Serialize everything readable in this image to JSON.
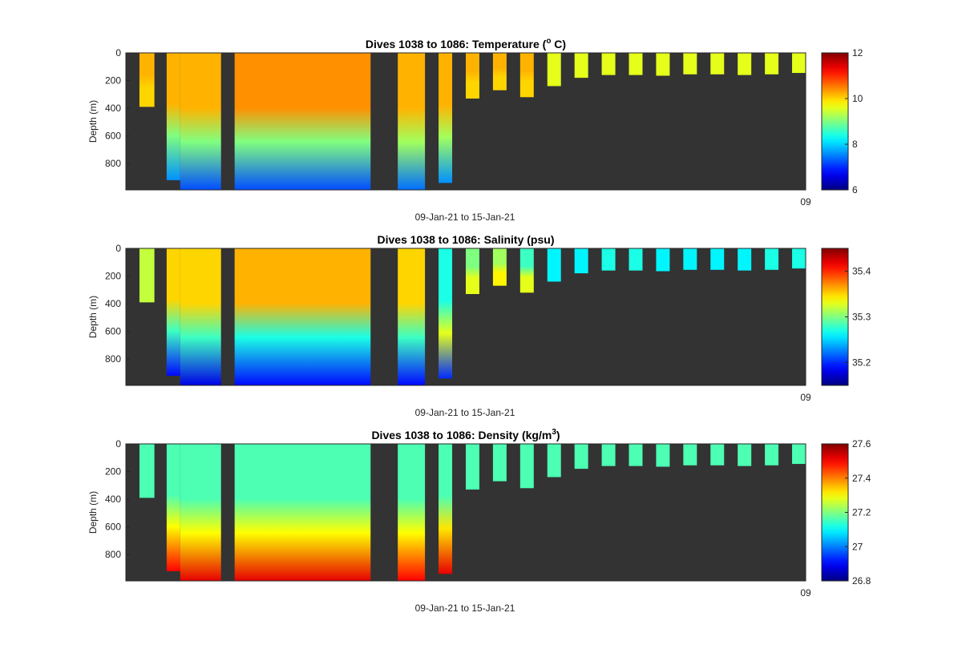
{
  "figure": {
    "background": "#ffffff",
    "panel_background": "#333333"
  },
  "chart_data": [
    {
      "type": "heatmap",
      "title": "Dives 1038 to 1086: Temperature (",
      "title_sup": "o",
      "title_tail": " C)",
      "xlabel": "09-Jan-21 to 15-Jan-21",
      "x_end_tick_label": "09",
      "ylabel": "Depth (m)",
      "ylim": [
        0,
        990
      ],
      "y_reversed": true,
      "yticks": [
        0,
        200,
        400,
        600,
        800
      ],
      "colormap": "jet",
      "clim": [
        6,
        12
      ],
      "colorbar_ticks": [
        6,
        8,
        10,
        12
      ],
      "profiles": [
        {
          "x": [
            0.02,
            0.042
          ],
          "bottom": 390,
          "top_value": 10.2,
          "mid_value": 10.0,
          "bottom_value": 10.0
        },
        {
          "x": [
            0.06,
            0.08
          ],
          "bottom": 920,
          "top_value": 10.2,
          "mid_value": 9.0,
          "bottom_value": 7.6
        },
        {
          "x": [
            0.08,
            0.14
          ],
          "bottom": 990,
          "top_value": 10.2,
          "mid_value": 9.0,
          "bottom_value": 7.2
        },
        {
          "x": [
            0.16,
            0.36
          ],
          "bottom": 990,
          "top_value": 10.4,
          "mid_value": 9.0,
          "bottom_value": 7.2
        },
        {
          "x": [
            0.4,
            0.44
          ],
          "bottom": 990,
          "top_value": 10.2,
          "mid_value": 9.2,
          "bottom_value": 7.4
        },
        {
          "x": [
            0.46,
            0.48
          ],
          "bottom": 940,
          "top_value": 10.2,
          "mid_value": 9.2,
          "bottom_value": 7.6
        },
        {
          "x": [
            0.5,
            0.52
          ],
          "bottom": 330,
          "top_value": 10.2,
          "mid_value": 10.0,
          "bottom_value": 10.0
        },
        {
          "x": [
            0.54,
            0.56
          ],
          "bottom": 270,
          "top_value": 10.2,
          "mid_value": 10.0,
          "bottom_value": 10.0
        },
        {
          "x": [
            0.58,
            0.6
          ],
          "bottom": 320,
          "top_value": 10.2,
          "mid_value": 10.0,
          "bottom_value": 10.0
        },
        {
          "x": [
            0.62,
            0.64
          ],
          "bottom": 240,
          "top_value": 9.6,
          "mid_value": 9.6,
          "bottom_value": 9.6
        },
        {
          "x": [
            0.66,
            0.68
          ],
          "bottom": 180,
          "top_value": 9.6,
          "mid_value": 9.6,
          "bottom_value": 9.6
        },
        {
          "x": [
            0.7,
            0.72
          ],
          "bottom": 160,
          "top_value": 9.6,
          "mid_value": 9.6,
          "bottom_value": 9.6
        },
        {
          "x": [
            0.74,
            0.76
          ],
          "bottom": 160,
          "top_value": 9.6,
          "mid_value": 9.6,
          "bottom_value": 9.6
        },
        {
          "x": [
            0.78,
            0.8
          ],
          "bottom": 165,
          "top_value": 9.6,
          "mid_value": 9.6,
          "bottom_value": 9.6
        },
        {
          "x": [
            0.82,
            0.84
          ],
          "bottom": 155,
          "top_value": 9.6,
          "mid_value": 9.6,
          "bottom_value": 9.6
        },
        {
          "x": [
            0.86,
            0.88
          ],
          "bottom": 155,
          "top_value": 9.6,
          "mid_value": 9.6,
          "bottom_value": 9.6
        },
        {
          "x": [
            0.9,
            0.92
          ],
          "bottom": 160,
          "top_value": 9.6,
          "mid_value": 9.6,
          "bottom_value": 9.6
        },
        {
          "x": [
            0.94,
            0.96
          ],
          "bottom": 155,
          "top_value": 9.6,
          "mid_value": 9.6,
          "bottom_value": 9.6
        },
        {
          "x": [
            0.98,
            1.0
          ],
          "bottom": 145,
          "top_value": 9.6,
          "mid_value": 9.6,
          "bottom_value": 9.6
        }
      ]
    },
    {
      "type": "heatmap",
      "title": "Dives 1038 to 1086: Salinity (psu)",
      "title_sup": "",
      "title_tail": "",
      "xlabel": "09-Jan-21 to 15-Jan-21",
      "x_end_tick_label": "09",
      "ylabel": "Depth (m)",
      "ylim": [
        0,
        990
      ],
      "y_reversed": true,
      "yticks": [
        0,
        200,
        400,
        600,
        800
      ],
      "colormap": "jet",
      "clim": [
        35.15,
        35.45
      ],
      "colorbar_ticks": [
        35.2,
        35.3,
        35.4
      ],
      "profiles": [
        {
          "x": [
            0.02,
            0.042
          ],
          "bottom": 390,
          "top_value": 35.32,
          "mid_value": 35.32,
          "bottom_value": 35.32
        },
        {
          "x": [
            0.06,
            0.08
          ],
          "bottom": 920,
          "top_value": 35.35,
          "mid_value": 35.28,
          "bottom_value": 35.19
        },
        {
          "x": [
            0.08,
            0.14
          ],
          "bottom": 990,
          "top_value": 35.35,
          "mid_value": 35.28,
          "bottom_value": 35.18
        },
        {
          "x": [
            0.16,
            0.36
          ],
          "bottom": 990,
          "top_value": 35.36,
          "mid_value": 35.27,
          "bottom_value": 35.19
        },
        {
          "x": [
            0.4,
            0.44
          ],
          "bottom": 990,
          "top_value": 35.35,
          "mid_value": 35.28,
          "bottom_value": 35.19
        },
        {
          "x": [
            0.46,
            0.48
          ],
          "bottom": 940,
          "top_value": 35.27,
          "mid_value": 35.33,
          "bottom_value": 35.2
        },
        {
          "x": [
            0.5,
            0.52
          ],
          "bottom": 330,
          "top_value": 35.3,
          "mid_value": 35.33,
          "bottom_value": 35.33
        },
        {
          "x": [
            0.54,
            0.56
          ],
          "bottom": 270,
          "top_value": 35.31,
          "mid_value": 35.34,
          "bottom_value": 35.34
        },
        {
          "x": [
            0.58,
            0.6
          ],
          "bottom": 320,
          "top_value": 35.28,
          "mid_value": 35.33,
          "bottom_value": 35.33
        },
        {
          "x": [
            0.62,
            0.64
          ],
          "bottom": 240,
          "top_value": 35.26,
          "mid_value": 35.26,
          "bottom_value": 35.26
        },
        {
          "x": [
            0.66,
            0.68
          ],
          "bottom": 180,
          "top_value": 35.26,
          "mid_value": 35.26,
          "bottom_value": 35.26
        },
        {
          "x": [
            0.7,
            0.72
          ],
          "bottom": 160,
          "top_value": 35.27,
          "mid_value": 35.27,
          "bottom_value": 35.27
        },
        {
          "x": [
            0.74,
            0.76
          ],
          "bottom": 160,
          "top_value": 35.27,
          "mid_value": 35.27,
          "bottom_value": 35.27
        },
        {
          "x": [
            0.78,
            0.8
          ],
          "bottom": 165,
          "top_value": 35.26,
          "mid_value": 35.26,
          "bottom_value": 35.26
        },
        {
          "x": [
            0.82,
            0.84
          ],
          "bottom": 155,
          "top_value": 35.26,
          "mid_value": 35.26,
          "bottom_value": 35.26
        },
        {
          "x": [
            0.86,
            0.88
          ],
          "bottom": 155,
          "top_value": 35.26,
          "mid_value": 35.26,
          "bottom_value": 35.26
        },
        {
          "x": [
            0.9,
            0.92
          ],
          "bottom": 160,
          "top_value": 35.26,
          "mid_value": 35.26,
          "bottom_value": 35.26
        },
        {
          "x": [
            0.94,
            0.96
          ],
          "bottom": 155,
          "top_value": 35.27,
          "mid_value": 35.27,
          "bottom_value": 35.27
        },
        {
          "x": [
            0.98,
            1.0
          ],
          "bottom": 145,
          "top_value": 35.27,
          "mid_value": 35.27,
          "bottom_value": 35.27
        }
      ]
    },
    {
      "type": "heatmap",
      "title": "Dives 1038 to 1086: Density (kg/m",
      "title_sup": "3",
      "title_tail": ")",
      "xlabel": "09-Jan-21 to 15-Jan-21",
      "x_end_tick_label": "09",
      "ylabel": "Depth (m)",
      "ylim": [
        0,
        990
      ],
      "y_reversed": true,
      "yticks": [
        0,
        200,
        400,
        600,
        800
      ],
      "colormap": "jet",
      "clim": [
        26.8,
        27.6
      ],
      "colorbar_ticks": [
        26.8,
        27,
        27.2,
        27.4,
        27.6
      ],
      "profiles": [
        {
          "x": [
            0.02,
            0.042
          ],
          "bottom": 390,
          "top_value": 27.16,
          "mid_value": 27.16,
          "bottom_value": 27.16
        },
        {
          "x": [
            0.06,
            0.08
          ],
          "bottom": 920,
          "top_value": 27.16,
          "mid_value": 27.3,
          "bottom_value": 27.5
        },
        {
          "x": [
            0.08,
            0.14
          ],
          "bottom": 990,
          "top_value": 27.16,
          "mid_value": 27.3,
          "bottom_value": 27.52
        },
        {
          "x": [
            0.16,
            0.36
          ],
          "bottom": 990,
          "top_value": 27.16,
          "mid_value": 27.3,
          "bottom_value": 27.52
        },
        {
          "x": [
            0.4,
            0.44
          ],
          "bottom": 990,
          "top_value": 27.16,
          "mid_value": 27.3,
          "bottom_value": 27.5
        },
        {
          "x": [
            0.46,
            0.48
          ],
          "bottom": 940,
          "top_value": 27.16,
          "mid_value": 27.32,
          "bottom_value": 27.52
        },
        {
          "x": [
            0.5,
            0.52
          ],
          "bottom": 330,
          "top_value": 27.16,
          "mid_value": 27.16,
          "bottom_value": 27.16
        },
        {
          "x": [
            0.54,
            0.56
          ],
          "bottom": 270,
          "top_value": 27.16,
          "mid_value": 27.16,
          "bottom_value": 27.16
        },
        {
          "x": [
            0.58,
            0.6
          ],
          "bottom": 320,
          "top_value": 27.16,
          "mid_value": 27.16,
          "bottom_value": 27.16
        },
        {
          "x": [
            0.62,
            0.64
          ],
          "bottom": 240,
          "top_value": 27.16,
          "mid_value": 27.16,
          "bottom_value": 27.16
        },
        {
          "x": [
            0.66,
            0.68
          ],
          "bottom": 180,
          "top_value": 27.16,
          "mid_value": 27.16,
          "bottom_value": 27.16
        },
        {
          "x": [
            0.7,
            0.72
          ],
          "bottom": 160,
          "top_value": 27.16,
          "mid_value": 27.16,
          "bottom_value": 27.16
        },
        {
          "x": [
            0.74,
            0.76
          ],
          "bottom": 160,
          "top_value": 27.16,
          "mid_value": 27.16,
          "bottom_value": 27.16
        },
        {
          "x": [
            0.78,
            0.8
          ],
          "bottom": 165,
          "top_value": 27.16,
          "mid_value": 27.16,
          "bottom_value": 27.16
        },
        {
          "x": [
            0.82,
            0.84
          ],
          "bottom": 155,
          "top_value": 27.16,
          "mid_value": 27.16,
          "bottom_value": 27.16
        },
        {
          "x": [
            0.86,
            0.88
          ],
          "bottom": 155,
          "top_value": 27.16,
          "mid_value": 27.16,
          "bottom_value": 27.16
        },
        {
          "x": [
            0.9,
            0.92
          ],
          "bottom": 160,
          "top_value": 27.16,
          "mid_value": 27.16,
          "bottom_value": 27.16
        },
        {
          "x": [
            0.94,
            0.96
          ],
          "bottom": 155,
          "top_value": 27.16,
          "mid_value": 27.16,
          "bottom_value": 27.16
        },
        {
          "x": [
            0.98,
            1.0
          ],
          "bottom": 145,
          "top_value": 27.16,
          "mid_value": 27.16,
          "bottom_value": 27.16
        }
      ]
    }
  ]
}
